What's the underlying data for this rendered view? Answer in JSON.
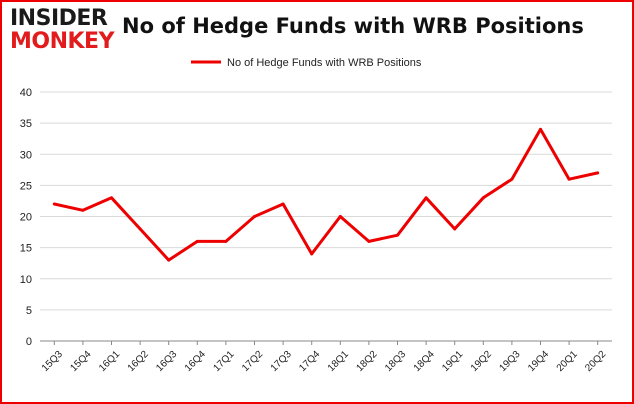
{
  "header": {
    "logo_line1": "INSIDER",
    "logo_line2": "MONKEY",
    "title": "No of Hedge Funds with WRB Positions"
  },
  "colors": {
    "series": "#ee0000",
    "border": "#ee0000",
    "grid": "#d9d9d9",
    "axis": "#888888"
  },
  "chart_data": {
    "type": "line",
    "title": "No of Hedge Funds with WRB Positions",
    "xlabel": "",
    "ylabel": "",
    "ylim": [
      0,
      40
    ],
    "yticks": [
      0,
      5,
      10,
      15,
      20,
      25,
      30,
      35,
      40
    ],
    "grid": true,
    "legend_position": "top-center",
    "x": [
      "15Q3",
      "15Q4",
      "16Q1",
      "16Q2",
      "16Q3",
      "16Q4",
      "17Q1",
      "17Q2",
      "17Q3",
      "17Q4",
      "18Q1",
      "18Q2",
      "18Q3",
      "18Q4",
      "19Q1",
      "19Q2",
      "19Q3",
      "19Q4",
      "20Q1",
      "20Q2"
    ],
    "series": [
      {
        "name": "No of Hedge Funds with WRB Positions",
        "values": [
          22,
          21,
          23,
          18,
          13,
          16,
          16,
          20,
          22,
          14,
          20,
          16,
          17,
          23,
          18,
          23,
          26,
          34,
          26,
          27
        ]
      }
    ]
  }
}
